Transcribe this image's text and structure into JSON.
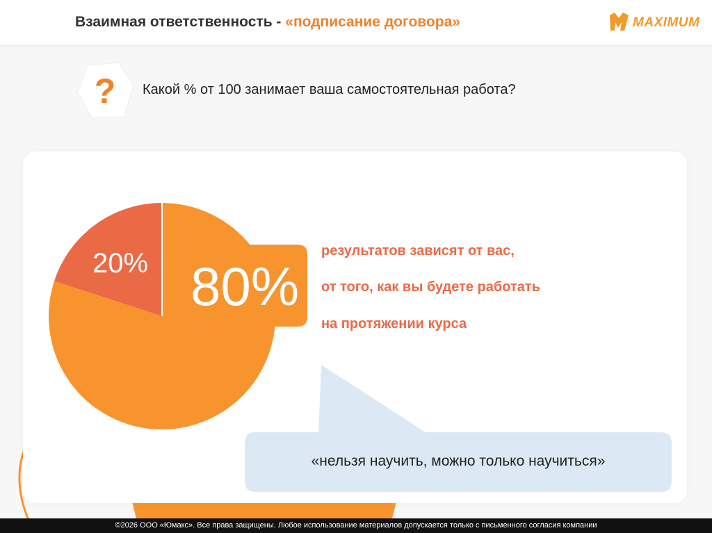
{
  "header": {
    "title_main": "Взаимная ответственность - ",
    "title_accent": "«подписание договора»",
    "logo_text": "MAXIMUM"
  },
  "question": {
    "icon": "?",
    "text": "Какой % от 100 занимает ваша самостоятельная работа?"
  },
  "chart_data": {
    "type": "pie",
    "slices": [
      {
        "label": "20%",
        "value": 20,
        "color": "#ea6a45"
      },
      {
        "label": "80%",
        "value": 80,
        "color": "#f7942d"
      }
    ]
  },
  "result_lines": [
    "результатов зависят от вас,",
    "от того, как вы будете работать",
    "на протяжении курса"
  ],
  "quote": "«нельзя научить, можно только научиться»",
  "footer": "©2026 ООО «Юмакс». Все права защищены. Любое использование материалов допускается только с письменного согласия компании",
  "colors": {
    "orange": "#f7942d",
    "coral": "#ea6a45",
    "bubble": "#dce9f4"
  }
}
